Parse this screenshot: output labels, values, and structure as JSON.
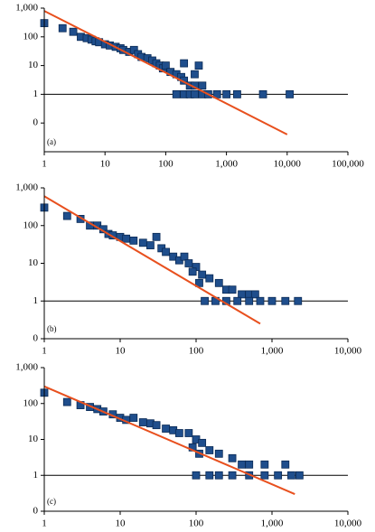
{
  "chart_data": [
    {
      "type": "scatter",
      "label": "(a)",
      "log_x": true,
      "log_y": true,
      "reference_line": 1,
      "xlim": [
        1,
        100000
      ],
      "ylim": [
        0.01,
        1000
      ],
      "xticks": [
        1,
        10,
        100,
        {
          "value": 1000,
          "label": "1,000"
        },
        {
          "value": 10000,
          "label": "10,000"
        },
        {
          "value": 100000,
          "label": "100,000"
        }
      ],
      "yticks": [
        {
          "value": 0.1,
          "label": "0"
        },
        1,
        10,
        100,
        {
          "value": 1000,
          "label": "1,000"
        }
      ],
      "series": [
        {
          "mode": "markers",
          "color": "#1f4e8c",
          "x": [
            1,
            2,
            3,
            4,
            5,
            6,
            7,
            8,
            10,
            12,
            15,
            18,
            20,
            25,
            30,
            35,
            40,
            50,
            60,
            70,
            80,
            90,
            100,
            120,
            150,
            180,
            200,
            250,
            300,
            350,
            150,
            200,
            250,
            300,
            400,
            500,
            700,
            1000,
            1500,
            4000,
            11000,
            200,
            300,
            400
          ],
          "values": [
            300,
            200,
            150,
            100,
            90,
            80,
            70,
            65,
            55,
            50,
            45,
            40,
            35,
            30,
            35,
            25,
            20,
            18,
            15,
            12,
            10,
            8,
            10,
            6,
            5,
            4,
            3,
            2,
            2,
            10,
            1,
            1,
            1,
            1,
            1,
            1,
            1,
            1,
            1,
            1,
            1,
            12,
            5,
            2
          ]
        },
        {
          "mode": "line",
          "color": "#e8501e",
          "x": [
            1,
            10000
          ],
          "values": [
            800,
            0.04
          ]
        }
      ]
    },
    {
      "type": "scatter",
      "label": "(b)",
      "log_x": true,
      "log_y": true,
      "reference_line": 1,
      "xlim": [
        1,
        10000
      ],
      "ylim": [
        0.1,
        1000
      ],
      "xticks": [
        1,
        10,
        100,
        {
          "value": 1000,
          "label": "1,000"
        },
        {
          "value": 10000,
          "label": "10,000"
        }
      ],
      "yticks": [
        {
          "value": 0.1,
          "label": "0"
        },
        1,
        10,
        100,
        {
          "value": 1000,
          "label": "1,000"
        }
      ],
      "series": [
        {
          "mode": "markers",
          "color": "#1f4e8c",
          "x": [
            1,
            2,
            3,
            4,
            5,
            6,
            7,
            8,
            10,
            12,
            15,
            20,
            25,
            30,
            35,
            40,
            50,
            60,
            70,
            80,
            100,
            120,
            150,
            200,
            250,
            300,
            400,
            500,
            600,
            130,
            180,
            250,
            350,
            500,
            700,
            1000,
            1500,
            2200,
            90,
            110
          ],
          "values": [
            300,
            180,
            150,
            100,
            100,
            80,
            60,
            55,
            50,
            45,
            40,
            35,
            30,
            50,
            25,
            20,
            15,
            12,
            15,
            10,
            8,
            5,
            4,
            3,
            2,
            2,
            1.5,
            1.5,
            1.5,
            1,
            1,
            1,
            1,
            1,
            1,
            1,
            1,
            1,
            6,
            3
          ]
        },
        {
          "mode": "line",
          "color": "#e8501e",
          "x": [
            1,
            700
          ],
          "values": [
            600,
            0.25
          ]
        }
      ]
    },
    {
      "type": "scatter",
      "label": "(c)",
      "log_x": true,
      "log_y": true,
      "reference_line": 1,
      "xlim": [
        1,
        10000
      ],
      "ylim": [
        0.1,
        1000
      ],
      "xticks": [
        1,
        10,
        100,
        {
          "value": 1000,
          "label": "1,000"
        },
        {
          "value": 10000,
          "label": "10,000"
        }
      ],
      "yticks": [
        {
          "value": 0.1,
          "label": "0"
        },
        1,
        10,
        100,
        {
          "value": 1000,
          "label": "1,000"
        }
      ],
      "series": [
        {
          "mode": "markers",
          "color": "#1f4e8c",
          "x": [
            1,
            2,
            3,
            4,
            5,
            6,
            8,
            10,
            12,
            15,
            20,
            25,
            30,
            40,
            50,
            60,
            80,
            100,
            120,
            150,
            200,
            300,
            400,
            500,
            800,
            1500,
            100,
            150,
            200,
            300,
            500,
            800,
            1200,
            1800,
            2300,
            90,
            110
          ],
          "values": [
            200,
            110,
            90,
            80,
            70,
            60,
            50,
            40,
            35,
            40,
            30,
            28,
            25,
            20,
            18,
            15,
            15,
            10,
            8,
            5,
            4,
            3,
            2,
            2,
            2,
            2,
            1,
            1,
            1,
            1,
            1,
            1,
            1,
            1,
            1,
            6,
            4
          ]
        },
        {
          "mode": "line",
          "color": "#e8501e",
          "x": [
            1,
            2000
          ],
          "values": [
            300,
            0.3
          ]
        }
      ]
    }
  ]
}
